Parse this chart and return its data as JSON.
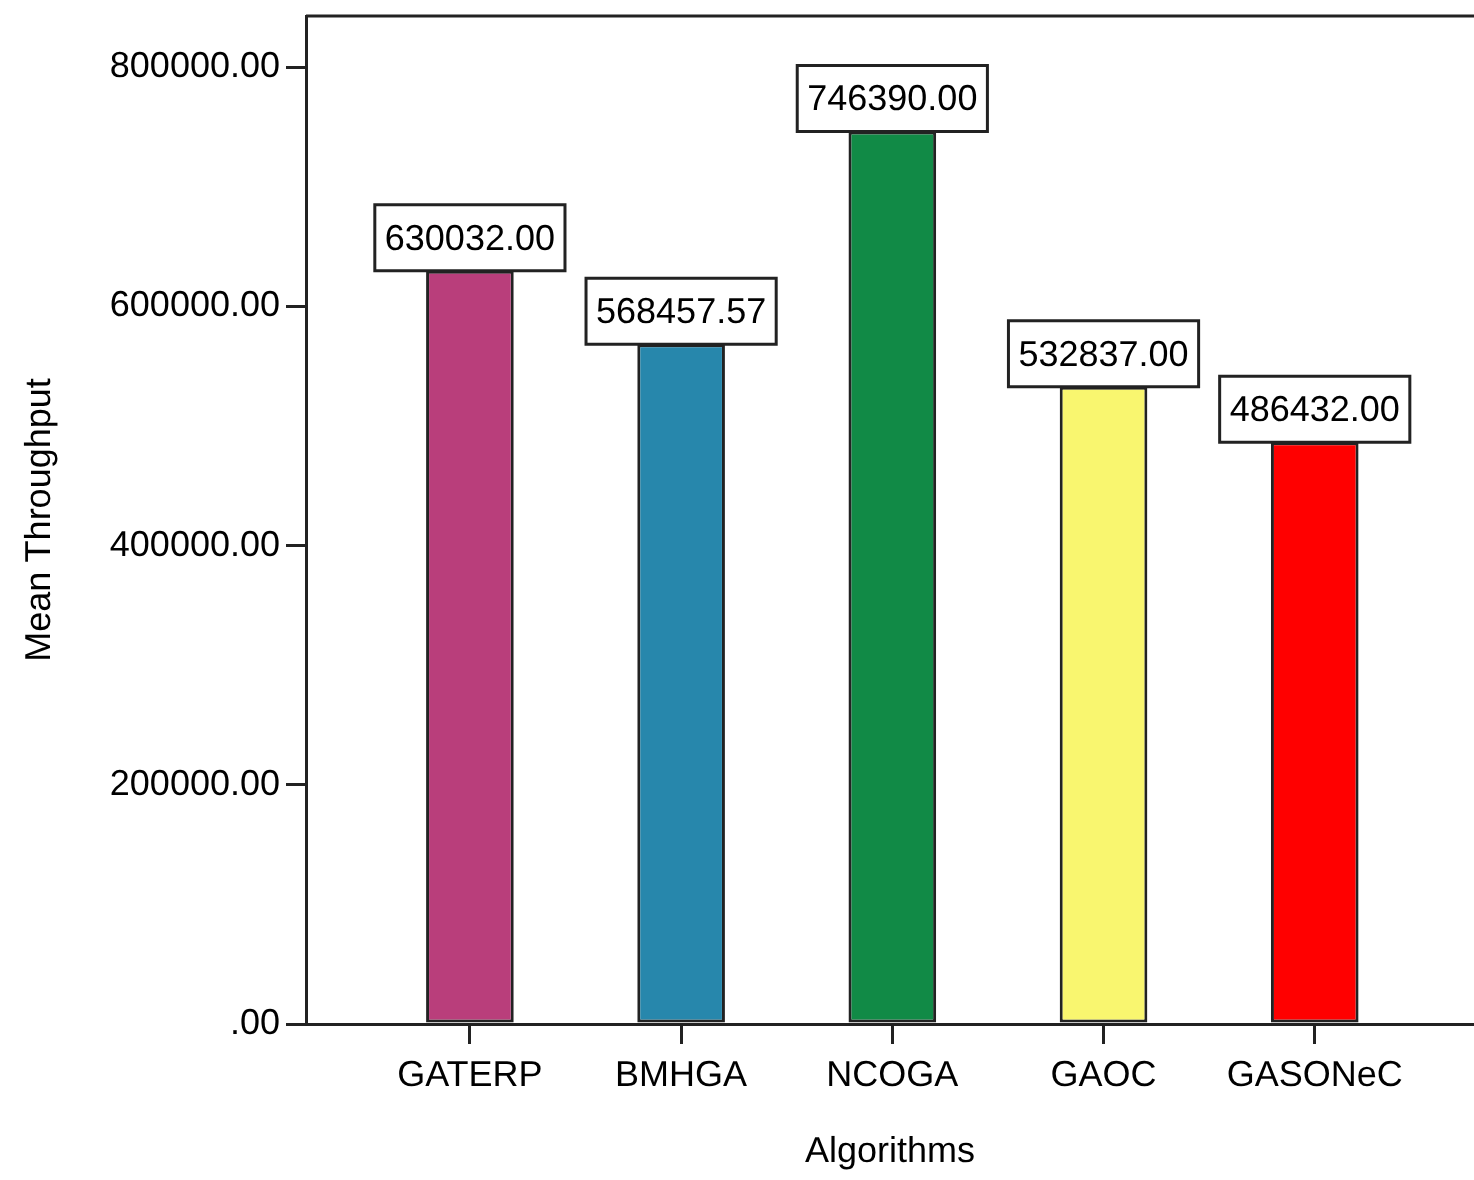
{
  "chart_data": {
    "type": "bar",
    "xlabel": "Algorithms",
    "ylabel": "Mean Throughput",
    "categories": [
      "GATERP",
      "BMHGA",
      "NCOGA",
      "GAOC",
      "GASONeC"
    ],
    "values": [
      630032,
      568457.57,
      746390,
      532837,
      486432
    ],
    "colors": [
      "#b93e7b",
      "#2787ac",
      "#118a46",
      "#f9f66f",
      "#ff0000"
    ],
    "value_labels": [
      "630032.00",
      "568457.57",
      "746390.00",
      "532837.00",
      "486432.00"
    ],
    "ylim": [
      0,
      843000
    ],
    "yticks": [
      {
        "value": 0,
        "label": ".00"
      },
      {
        "value": 200000,
        "label": "200000.00"
      },
      {
        "value": 400000,
        "label": "400000.00"
      },
      {
        "value": 600000,
        "label": "600000.00"
      },
      {
        "value": 800000,
        "label": "800000.00"
      }
    ]
  }
}
